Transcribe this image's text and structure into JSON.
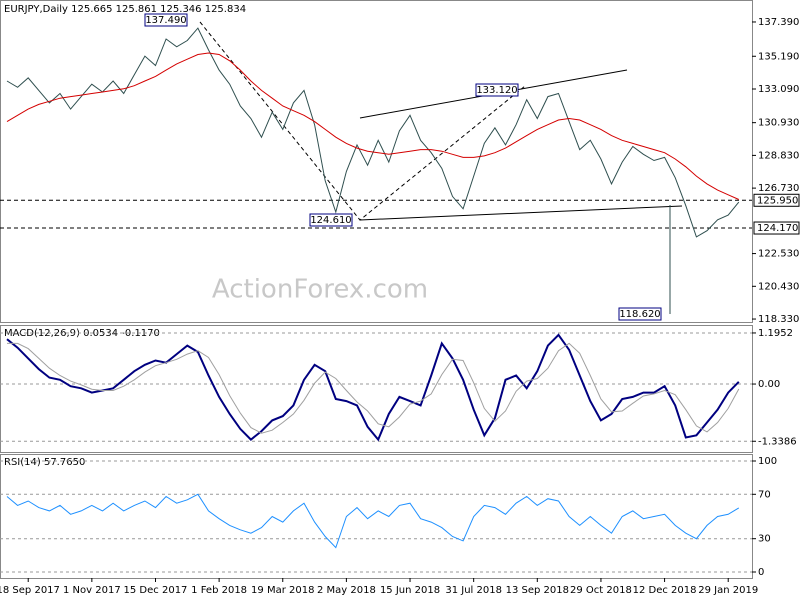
{
  "chart_data": [
    {
      "type": "line",
      "title": "EURJPY,Daily  125.665 125.861 125.346 125.834",
      "categories": [
        null,
        null,
        "18 Sep 2017",
        null,
        null,
        null,
        null,
        null,
        "1 Nov 2017",
        null,
        null,
        null,
        null,
        null,
        "15 Dec 2017",
        null,
        null,
        null,
        null,
        null,
        "1 Feb 2018",
        null,
        null,
        null,
        null,
        null,
        "19 Mar 2018",
        null,
        null,
        null,
        null,
        null,
        "2 May 2018",
        null,
        null,
        null,
        null,
        null,
        "15 Jun 2018",
        null,
        null,
        null,
        null,
        null,
        "31 Jul 2018",
        null,
        null,
        null,
        null,
        null,
        "13 Sep 2018",
        null,
        null,
        null,
        null,
        null,
        "29 Oct 2018",
        null,
        null,
        null,
        null,
        null,
        "12 Dec 2018",
        null,
        null,
        null,
        null,
        null,
        "29 Jan 2019",
        null
      ],
      "series": [
        {
          "name": "EURJPY",
          "color": "#2f4f4f",
          "values": [
            133.6,
            133.2,
            133.8,
            133.0,
            132.2,
            132.8,
            131.8,
            132.6,
            133.4,
            132.9,
            133.6,
            132.8,
            134.0,
            135.2,
            134.6,
            136.3,
            135.8,
            136.2,
            137.0,
            135.6,
            134.3,
            133.4,
            132.0,
            131.2,
            130.0,
            131.6,
            130.5,
            132.2,
            133.0,
            130.8,
            127.2,
            125.2,
            127.8,
            129.5,
            128.2,
            129.8,
            128.4,
            130.4,
            131.4,
            129.8,
            129.0,
            128.0,
            126.2,
            125.4,
            127.5,
            129.6,
            130.6,
            129.5,
            130.8,
            132.4,
            131.2,
            132.6,
            132.8,
            131.0,
            129.2,
            129.8,
            128.6,
            127.0,
            128.4,
            129.4,
            128.9,
            128.5,
            128.7,
            127.4,
            125.6,
            123.6,
            124.0,
            124.7,
            125.0,
            125.834
          ]
        },
        {
          "name": "MA",
          "color": "#d40000",
          "values": [
            131.0,
            131.4,
            131.8,
            132.1,
            132.3,
            132.5,
            132.6,
            132.7,
            132.8,
            132.9,
            133.0,
            133.1,
            133.3,
            133.6,
            133.9,
            134.3,
            134.7,
            135.0,
            135.3,
            135.4,
            135.3,
            134.9,
            134.3,
            133.6,
            133.0,
            132.5,
            132.0,
            131.7,
            131.4,
            131.0,
            130.5,
            130.0,
            129.6,
            129.3,
            129.1,
            129.0,
            128.9,
            129.0,
            129.1,
            129.2,
            129.2,
            129.1,
            128.9,
            128.7,
            128.7,
            128.8,
            129.0,
            129.3,
            129.7,
            130.1,
            130.5,
            130.8,
            131.1,
            131.2,
            131.1,
            130.8,
            130.5,
            130.1,
            129.8,
            129.6,
            129.4,
            129.2,
            129.0,
            128.6,
            128.1,
            127.5,
            127.0,
            126.6,
            126.3,
            126.0
          ]
        }
      ],
      "ylim": [
        118.14,
        138.8
      ],
      "yticks": [
        {
          "value": 137.39,
          "label": "137.390"
        },
        {
          "value": 135.19,
          "label": "135.190"
        },
        {
          "value": 133.09,
          "label": "133.090"
        },
        {
          "value": 130.93,
          "label": "130.930"
        },
        {
          "value": 128.83,
          "label": "128.830"
        },
        {
          "value": 126.73,
          "label": "126.730"
        },
        {
          "value": 122.53,
          "label": "122.530"
        },
        {
          "value": 120.43,
          "label": "120.430"
        },
        {
          "value": 118.33,
          "label": "118.330"
        }
      ],
      "hlines": [
        {
          "value": 125.95,
          "label": "125.950"
        },
        {
          "value": 124.17,
          "label": "124.170"
        }
      ],
      "annotations": [
        "137.490",
        "133.120",
        "124.610",
        "118.620"
      ],
      "watermark": "ActionForex.com"
    },
    {
      "type": "line",
      "title": "MACD(12,26,9) 0.0534 -0.1170",
      "series": [
        {
          "name": "MACD",
          "color": "#000080",
          "values": [
            1.05,
            0.85,
            0.6,
            0.35,
            0.15,
            0.1,
            -0.05,
            -0.1,
            -0.2,
            -0.15,
            -0.1,
            0.1,
            0.3,
            0.45,
            0.55,
            0.5,
            0.7,
            0.9,
            0.75,
            0.2,
            -0.3,
            -0.7,
            -1.05,
            -1.3,
            -1.1,
            -0.85,
            -0.75,
            -0.5,
            0.1,
            0.45,
            0.3,
            -0.35,
            -0.4,
            -0.5,
            -1.0,
            -1.3,
            -0.7,
            -0.3,
            -0.4,
            -0.5,
            0.2,
            0.95,
            0.6,
            0.1,
            -0.6,
            -1.2,
            -0.8,
            0.1,
            0.2,
            -0.1,
            0.3,
            0.9,
            1.15,
            0.8,
            0.2,
            -0.4,
            -0.85,
            -0.7,
            -0.35,
            -0.3,
            -0.2,
            -0.2,
            -0.05,
            -0.5,
            -1.25,
            -1.2,
            -0.9,
            -0.6,
            -0.2,
            0.0534
          ]
        },
        {
          "name": "Signal",
          "color": "#a0a0a0",
          "values": [
            0.95,
            0.95,
            0.83,
            0.6,
            0.37,
            0.2,
            0.07,
            -0.02,
            -0.12,
            -0.15,
            -0.15,
            -0.05,
            0.1,
            0.28,
            0.43,
            0.5,
            0.58,
            0.7,
            0.78,
            0.62,
            0.22,
            -0.27,
            -0.68,
            -1.02,
            -1.15,
            -1.08,
            -0.9,
            -0.7,
            -0.38,
            0.02,
            0.28,
            0.13,
            -0.15,
            -0.42,
            -0.63,
            -0.93,
            -1.0,
            -0.77,
            -0.47,
            -0.4,
            -0.23,
            0.22,
            0.58,
            0.55,
            0.03,
            -0.57,
            -0.87,
            -0.63,
            -0.17,
            0.07,
            0.13,
            0.37,
            0.78,
            0.95,
            0.72,
            0.2,
            -0.35,
            -0.65,
            -0.63,
            -0.45,
            -0.28,
            -0.23,
            -0.15,
            -0.25,
            -0.6,
            -0.98,
            -1.12,
            -0.9,
            -0.57,
            -0.117
          ]
        }
      ],
      "ylim": [
        -1.59,
        1.358
      ],
      "yticks": [
        1.1952,
        {
          "value": 0,
          "label": "0.00"
        },
        -1.3386
      ]
    },
    {
      "type": "line",
      "title": "RSI(14) 57.7650",
      "series": [
        {
          "name": "RSI",
          "color": "#1e90ff",
          "values": [
            68,
            60,
            64,
            58,
            55,
            60,
            52,
            55,
            60,
            55,
            62,
            55,
            60,
            64,
            58,
            68,
            62,
            65,
            70,
            55,
            48,
            42,
            38,
            35,
            40,
            50,
            45,
            55,
            62,
            45,
            32,
            22,
            50,
            58,
            48,
            55,
            50,
            60,
            62,
            48,
            45,
            40,
            32,
            28,
            50,
            60,
            58,
            52,
            62,
            68,
            60,
            66,
            64,
            50,
            42,
            50,
            42,
            35,
            50,
            55,
            48,
            50,
            52,
            42,
            35,
            30,
            42,
            50,
            52,
            57.765
          ]
        }
      ],
      "ylim": [
        -5.4,
        105.4
      ],
      "yticks": [
        100,
        70,
        30,
        0
      ]
    }
  ]
}
